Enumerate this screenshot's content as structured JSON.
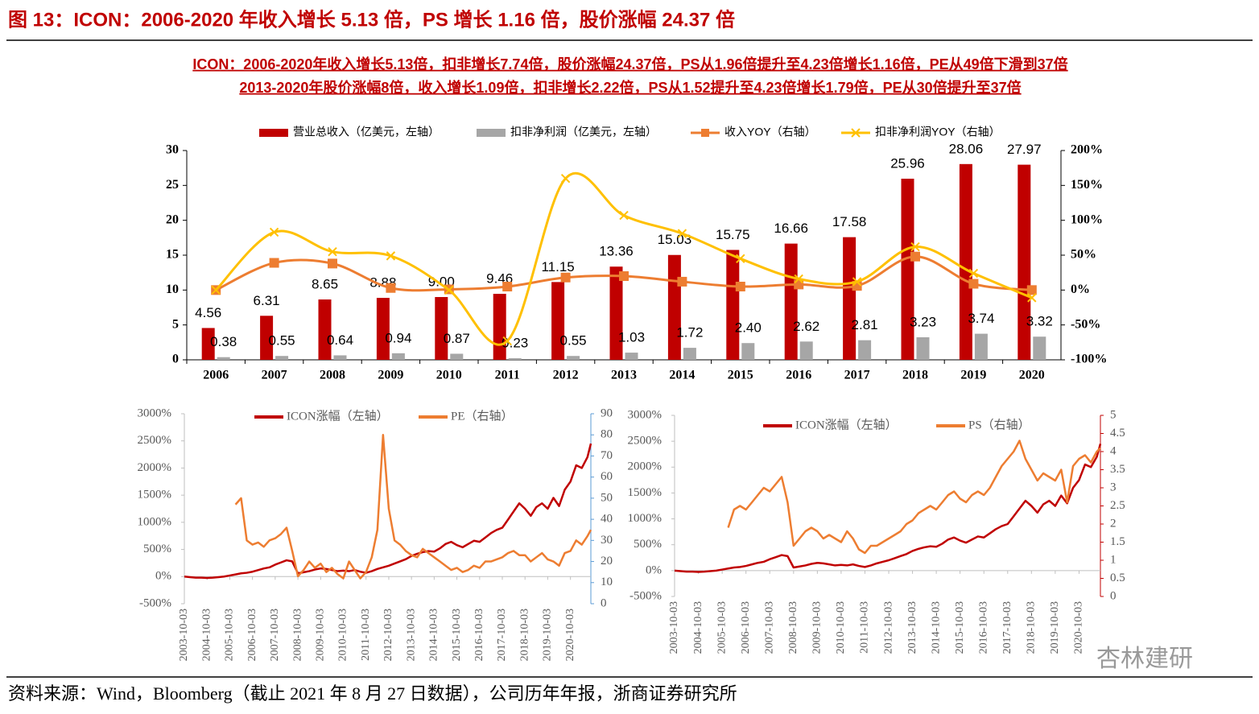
{
  "figure_title": "图 13：ICON：2006-2020 年收入增长 5.13 倍，PS 增长 1.16 倍，股价涨幅 24.37 倍",
  "subtitle_lines": [
    "ICON：2006-2020年收入增长5.13倍，扣非增长7.74倍，股价涨幅24.37倍，PS从1.96倍提升至4.23倍增长1.16倍，PE从49倍下滑到37倍",
    "2013-2020年股价涨幅8倍，收入增长1.09倍，扣非增长2.22倍，PS从1.52提升至4.23倍增长1.79倍，PE从30倍提升至37倍"
  ],
  "source": "资料来源：Wind，Bloomberg（截止 2021 年 8 月 27 日数据），公司历年年报，浙商证券研究所",
  "watermark": "杏林建研",
  "chart_data": [
    {
      "type": "bar",
      "categories": [
        "2006",
        "2007",
        "2008",
        "2009",
        "2010",
        "2011",
        "2012",
        "2013",
        "2014",
        "2015",
        "2016",
        "2017",
        "2018",
        "2019",
        "2020"
      ],
      "series": [
        {
          "name": "营业总收入（亿美元，左轴）",
          "color": "#c00000",
          "type": "bar",
          "values": [
            4.56,
            6.31,
            8.65,
            8.88,
            9.0,
            9.46,
            11.15,
            13.36,
            15.03,
            15.75,
            16.66,
            17.58,
            25.96,
            28.06,
            27.97
          ],
          "value_labels": [
            "4.56",
            "6.31",
            "8.65",
            "8.88",
            "9.00",
            "9.46",
            "11.15",
            "13.36",
            "15.03",
            "15.75",
            "16.66",
            "17.58",
            "25.96",
            "28.06",
            "27.97"
          ]
        },
        {
          "name": "扣非净利润（亿美元，左轴）",
          "color": "#a6a6a6",
          "type": "bar",
          "values": [
            0.38,
            0.55,
            0.64,
            0.94,
            0.87,
            0.23,
            0.55,
            1.03,
            1.72,
            2.4,
            2.62,
            2.81,
            3.23,
            3.74,
            3.32
          ],
          "value_labels": [
            "0.38",
            "0.55",
            "0.64",
            "0.94",
            "0.87",
            "0.23",
            "0.55",
            "1.03",
            "1.72",
            "2.40",
            "2.62",
            "2.81",
            "3.23",
            "3.74",
            "3.32"
          ]
        },
        {
          "name": "收入YOY（右轴）",
          "color": "#ed7d31",
          "type": "line",
          "axis": "y2",
          "marker": "square",
          "smooth": true,
          "values": [
            0,
            39,
            38,
            3,
            1,
            5,
            18,
            20,
            12,
            5,
            8,
            6,
            48,
            9,
            0
          ]
        },
        {
          "name": "扣非净利润YOY（右轴）",
          "color": "#ffc000",
          "type": "line",
          "axis": "y2",
          "marker": "x",
          "smooth": true,
          "values": [
            0,
            83,
            55,
            49,
            0,
            -73,
            160,
            107,
            81,
            45,
            16,
            12,
            62,
            24,
            -11
          ]
        }
      ],
      "ylim": [
        0,
        30
      ],
      "yticks": [
        0,
        5,
        10,
        15,
        20,
        25,
        30
      ],
      "y2lim": [
        -100,
        200
      ],
      "y2ticks": [
        {
          "value": -100,
          "label": "-100%"
        },
        {
          "value": -50,
          "label": "-50%"
        },
        {
          "value": 0,
          "label": "0%"
        },
        {
          "value": 50,
          "label": "50%"
        },
        {
          "value": 100,
          "label": "100%"
        },
        {
          "value": 150,
          "label": "150%"
        },
        {
          "value": 200,
          "label": "200%"
        }
      ],
      "legend": "top"
    },
    {
      "type": "line",
      "x": [
        "2003-10-03",
        "2004-01-03",
        "2004-04-03",
        "2004-07-03",
        "2004-10-03",
        "2005-01-03",
        "2005-04-03",
        "2005-07-03",
        "2005-10-03",
        "2006-01-03",
        "2006-04-03",
        "2006-07-03",
        "2006-10-03",
        "2007-01-03",
        "2007-04-03",
        "2007-07-03",
        "2007-10-03",
        "2008-01-03",
        "2008-04-03",
        "2008-07-03",
        "2008-10-03",
        "2009-01-03",
        "2009-04-03",
        "2009-07-03",
        "2009-10-03",
        "2010-01-03",
        "2010-04-03",
        "2010-07-03",
        "2010-10-03",
        "2011-01-03",
        "2011-04-03",
        "2011-07-03",
        "2011-10-03",
        "2012-01-03",
        "2012-04-03",
        "2012-07-03",
        "2012-10-03",
        "2013-01-03",
        "2013-04-03",
        "2013-07-03",
        "2013-10-03",
        "2014-01-03",
        "2014-04-03",
        "2014-07-03",
        "2014-10-03",
        "2015-01-03",
        "2015-04-03",
        "2015-07-03",
        "2015-10-03",
        "2016-01-03",
        "2016-04-03",
        "2016-07-03",
        "2016-10-03",
        "2017-01-03",
        "2017-04-03",
        "2017-07-03",
        "2017-10-03",
        "2018-01-03",
        "2018-04-03",
        "2018-07-03",
        "2018-10-03",
        "2019-01-03",
        "2019-04-03",
        "2019-07-03",
        "2019-10-03",
        "2020-01-03",
        "2020-04-03",
        "2020-07-03",
        "2020-10-03",
        "2021-01-03",
        "2021-04-03",
        "2021-07-03",
        "2021-08-27"
      ],
      "series": [
        {
          "name": "ICON涨幅（左轴）",
          "color": "#c00000",
          "values": [
            0,
            -10,
            -20,
            -20,
            -25,
            -20,
            -10,
            0,
            20,
            40,
            60,
            70,
            90,
            120,
            150,
            170,
            220,
            260,
            300,
            280,
            60,
            80,
            100,
            130,
            150,
            140,
            120,
            100,
            110,
            100,
            120,
            90,
            70,
            100,
            140,
            170,
            200,
            240,
            280,
            320,
            380,
            420,
            450,
            470,
            460,
            520,
            600,
            640,
            580,
            540,
            600,
            660,
            640,
            720,
            800,
            860,
            900,
            1050,
            1200,
            1350,
            1250,
            1120,
            1280,
            1350,
            1250,
            1450,
            1300,
            1600,
            1750,
            2050,
            2000,
            2200,
            2450
          ]
        },
        {
          "name": "PE（右轴）",
          "color": "#ed7d31",
          "axis": "y2",
          "values": [
            null,
            null,
            null,
            null,
            null,
            null,
            null,
            null,
            null,
            47,
            50,
            30,
            28,
            29,
            27,
            30,
            31,
            33,
            36,
            25,
            13,
            16,
            20,
            17,
            19,
            15,
            17,
            14,
            12,
            20,
            16,
            12,
            15,
            22,
            35,
            80,
            45,
            30,
            28,
            25,
            23,
            22,
            26,
            24,
            22,
            20,
            18,
            16,
            17,
            15,
            16,
            18,
            17,
            20,
            20,
            21,
            22,
            24,
            25,
            23,
            23,
            20,
            22,
            24,
            21,
            20,
            18,
            24,
            25,
            30,
            28,
            32,
            35
          ]
        }
      ],
      "xlim": [
        "2003-10-03",
        "2021-08-27"
      ],
      "xticks": [
        "2003-10-03",
        "2004-10-03",
        "2005-10-03",
        "2006-10-03",
        "2007-10-03",
        "2008-10-03",
        "2009-10-03",
        "2010-10-03",
        "2011-10-03",
        "2012-10-03",
        "2013-10-03",
        "2014-10-03",
        "2015-10-03",
        "2016-10-03",
        "2017-10-03",
        "2018-10-03",
        "2019-10-03",
        "2020-10-03"
      ],
      "ylim": [
        -500,
        3000
      ],
      "yticks": [
        {
          "value": -500,
          "label": "-500%"
        },
        {
          "value": 0,
          "label": "0%"
        },
        {
          "value": 500,
          "label": "500%"
        },
        {
          "value": 1000,
          "label": "1000%"
        },
        {
          "value": 1500,
          "label": "1500%"
        },
        {
          "value": 2000,
          "label": "2000%"
        },
        {
          "value": 2500,
          "label": "2500%"
        },
        {
          "value": 3000,
          "label": "3000%"
        }
      ],
      "y2lim": [
        0,
        90
      ],
      "y2ticks": [
        0,
        10,
        20,
        30,
        40,
        50,
        60,
        70,
        80,
        90
      ],
      "legend": "top"
    },
    {
      "type": "line",
      "x": [
        "2003-10-03",
        "2004-01-03",
        "2004-04-03",
        "2004-07-03",
        "2004-10-03",
        "2005-01-03",
        "2005-04-03",
        "2005-07-03",
        "2005-10-03",
        "2006-01-03",
        "2006-04-03",
        "2006-07-03",
        "2006-10-03",
        "2007-01-03",
        "2007-04-03",
        "2007-07-03",
        "2007-10-03",
        "2008-01-03",
        "2008-04-03",
        "2008-07-03",
        "2008-10-03",
        "2009-01-03",
        "2009-04-03",
        "2009-07-03",
        "2009-10-03",
        "2010-01-03",
        "2010-04-03",
        "2010-07-03",
        "2010-10-03",
        "2011-01-03",
        "2011-04-03",
        "2011-07-03",
        "2011-10-03",
        "2012-01-03",
        "2012-04-03",
        "2012-07-03",
        "2012-10-03",
        "2013-01-03",
        "2013-04-03",
        "2013-07-03",
        "2013-10-03",
        "2014-01-03",
        "2014-04-03",
        "2014-07-03",
        "2014-10-03",
        "2015-01-03",
        "2015-04-03",
        "2015-07-03",
        "2015-10-03",
        "2016-01-03",
        "2016-04-03",
        "2016-07-03",
        "2016-10-03",
        "2017-01-03",
        "2017-04-03",
        "2017-07-03",
        "2017-10-03",
        "2018-01-03",
        "2018-04-03",
        "2018-07-03",
        "2018-10-03",
        "2019-01-03",
        "2019-04-03",
        "2019-07-03",
        "2019-10-03",
        "2020-01-03",
        "2020-04-03",
        "2020-07-03",
        "2020-10-03",
        "2021-01-03",
        "2021-04-03",
        "2021-07-03",
        "2021-08-27"
      ],
      "series": [
        {
          "name": "ICON涨幅（左轴）",
          "color": "#c00000",
          "values": [
            0,
            -10,
            -20,
            -20,
            -25,
            -20,
            -10,
            0,
            20,
            40,
            60,
            70,
            90,
            120,
            150,
            170,
            220,
            260,
            300,
            280,
            60,
            80,
            100,
            130,
            150,
            140,
            120,
            100,
            110,
            100,
            120,
            90,
            70,
            100,
            140,
            170,
            200,
            240,
            280,
            320,
            380,
            420,
            450,
            470,
            460,
            520,
            600,
            640,
            580,
            540,
            600,
            660,
            640,
            720,
            800,
            860,
            900,
            1050,
            1200,
            1350,
            1250,
            1120,
            1280,
            1350,
            1250,
            1450,
            1300,
            1600,
            1750,
            2050,
            2000,
            2200,
            2450
          ]
        },
        {
          "name": "PS（右轴）",
          "color": "#ed7d31",
          "axis": "y2",
          "values": [
            null,
            null,
            null,
            null,
            null,
            null,
            null,
            null,
            null,
            1.9,
            2.4,
            2.5,
            2.4,
            2.6,
            2.8,
            3.0,
            2.9,
            3.1,
            3.3,
            2.6,
            1.4,
            1.6,
            1.8,
            1.9,
            1.8,
            1.6,
            1.7,
            1.6,
            1.5,
            1.8,
            1.6,
            1.3,
            1.2,
            1.4,
            1.4,
            1.5,
            1.6,
            1.7,
            1.8,
            2.0,
            2.1,
            2.3,
            2.4,
            2.5,
            2.4,
            2.6,
            2.8,
            2.9,
            2.7,
            2.6,
            2.8,
            2.9,
            2.8,
            3.0,
            3.3,
            3.6,
            3.8,
            4.0,
            4.3,
            3.8,
            3.5,
            3.2,
            3.4,
            3.3,
            3.2,
            3.5,
            2.6,
            3.6,
            3.8,
            3.9,
            3.7,
            4.0,
            4.1
          ]
        }
      ],
      "xlim": [
        "2003-10-03",
        "2021-08-27"
      ],
      "xticks": [
        "2003-10-03",
        "2004-10-03",
        "2005-10-03",
        "2006-10-03",
        "2007-10-03",
        "2008-10-03",
        "2009-10-03",
        "2010-10-03",
        "2011-10-03",
        "2012-10-03",
        "2013-10-03",
        "2014-10-03",
        "2015-10-03",
        "2016-10-03",
        "2017-10-03",
        "2018-10-03",
        "2019-10-03",
        "2020-10-03"
      ],
      "ylim": [
        -500,
        3000
      ],
      "yticks": [
        {
          "value": -500,
          "label": "-500%"
        },
        {
          "value": 0,
          "label": "0%"
        },
        {
          "value": 500,
          "label": "500%"
        },
        {
          "value": 1000,
          "label": "1000%"
        },
        {
          "value": 1500,
          "label": "1500%"
        },
        {
          "value": 2000,
          "label": "2000%"
        },
        {
          "value": 2500,
          "label": "2500%"
        },
        {
          "value": 3000,
          "label": "3000%"
        }
      ],
      "y2lim": [
        0,
        5
      ],
      "y2ticks": [
        0,
        0.5,
        1,
        1.5,
        2,
        2.5,
        3,
        3.5,
        4,
        4.5,
        5
      ],
      "legend": "top"
    }
  ]
}
